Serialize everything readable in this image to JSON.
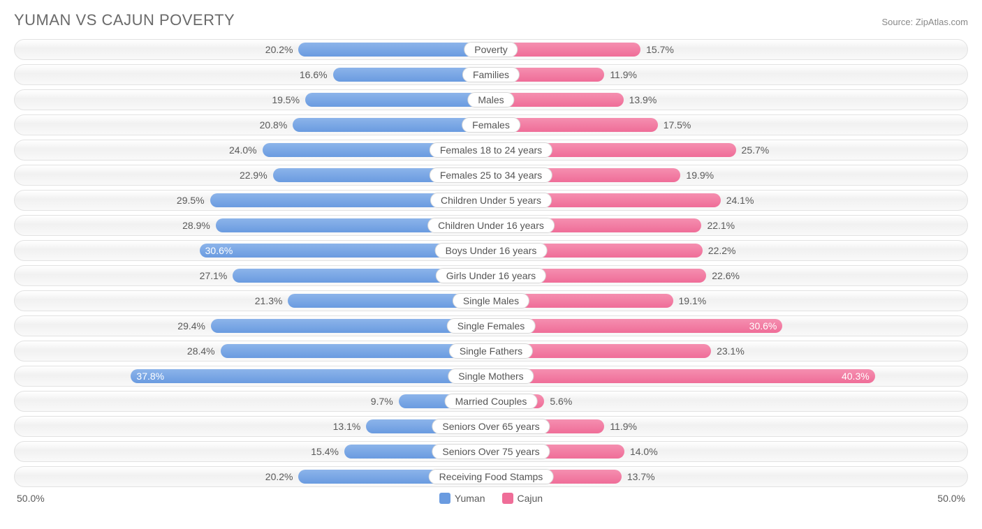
{
  "title": "YUMAN VS CAJUN POVERTY",
  "source": "Source: ZipAtlas.com",
  "chart": {
    "type": "diverging-bar",
    "axis_max": 50.0,
    "axis_left_label": "50.0%",
    "axis_right_label": "50.0%",
    "inside_label_threshold": 30.0,
    "series": [
      {
        "key": "yuman",
        "label": "Yuman",
        "color": "#6a9be0"
      },
      {
        "key": "cajun",
        "label": "Cajun",
        "color": "#ef6d98"
      }
    ],
    "track_bg_top": "#ffffff",
    "track_bg_mid": "#f1f1f1",
    "track_border": "#e2e2e2",
    "label_color": "#5a5a5a",
    "title_color": "#6a6a6a",
    "rows": [
      {
        "category": "Poverty",
        "yuman": 20.2,
        "cajun": 15.7
      },
      {
        "category": "Families",
        "yuman": 16.6,
        "cajun": 11.9
      },
      {
        "category": "Males",
        "yuman": 19.5,
        "cajun": 13.9
      },
      {
        "category": "Females",
        "yuman": 20.8,
        "cajun": 17.5
      },
      {
        "category": "Females 18 to 24 years",
        "yuman": 24.0,
        "cajun": 25.7
      },
      {
        "category": "Females 25 to 34 years",
        "yuman": 22.9,
        "cajun": 19.9
      },
      {
        "category": "Children Under 5 years",
        "yuman": 29.5,
        "cajun": 24.1
      },
      {
        "category": "Children Under 16 years",
        "yuman": 28.9,
        "cajun": 22.1
      },
      {
        "category": "Boys Under 16 years",
        "yuman": 30.6,
        "cajun": 22.2
      },
      {
        "category": "Girls Under 16 years",
        "yuman": 27.1,
        "cajun": 22.6
      },
      {
        "category": "Single Males",
        "yuman": 21.3,
        "cajun": 19.1
      },
      {
        "category": "Single Females",
        "yuman": 29.4,
        "cajun": 30.6
      },
      {
        "category": "Single Fathers",
        "yuman": 28.4,
        "cajun": 23.1
      },
      {
        "category": "Single Mothers",
        "yuman": 37.8,
        "cajun": 40.3
      },
      {
        "category": "Married Couples",
        "yuman": 9.7,
        "cajun": 5.6
      },
      {
        "category": "Seniors Over 65 years",
        "yuman": 13.1,
        "cajun": 11.9
      },
      {
        "category": "Seniors Over 75 years",
        "yuman": 15.4,
        "cajun": 14.0
      },
      {
        "category": "Receiving Food Stamps",
        "yuman": 20.2,
        "cajun": 13.7
      }
    ]
  }
}
